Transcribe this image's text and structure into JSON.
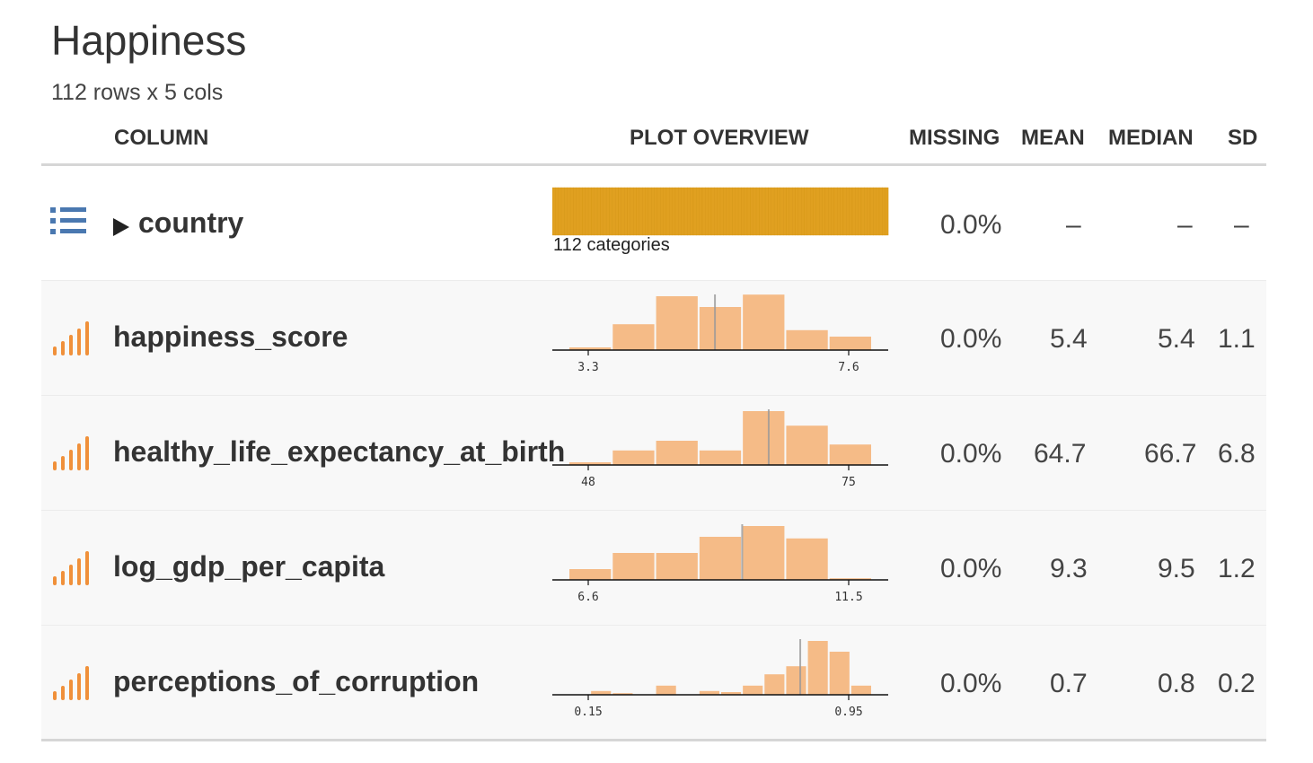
{
  "title": "Happiness",
  "subtitle": "112 rows x 5 cols",
  "headers": {
    "column": "COLUMN",
    "plot_overview": "PLOT OVERVIEW",
    "missing": "MISSING",
    "mean": "MEAN",
    "median": "MEDIAN",
    "sd": "SD"
  },
  "colors": {
    "categorical_bar": "#e0a020",
    "histogram_bar": "#f5bb87",
    "numeric_icon": "#f0903a",
    "categorical_icon": "#4a78b0"
  },
  "rows": [
    {
      "name": "country",
      "type_icon": "list-icon",
      "categories_label": "112 categories",
      "category_count": 112,
      "missing": "0.0%",
      "mean": "–",
      "median": "–",
      "sd": "–"
    },
    {
      "name": "happiness_score",
      "type_icon": "bar-signal-icon",
      "missing": "0.0%",
      "mean": "5.4",
      "median": "5.4",
      "sd": "1.1",
      "tick_min": "3.3",
      "tick_max": "7.6",
      "axis_min": 3.3,
      "axis_max": 7.6,
      "histogram": [
        0.05,
        0.48,
        1.0,
        0.8,
        1.03,
        0.37,
        0.25
      ],
      "median_marker": 5.4
    },
    {
      "name": "healthy_life_expectancy_at_birth",
      "type_icon": "bar-signal-icon",
      "missing": "0.0%",
      "mean": "64.7",
      "median": "66.7",
      "sd": "6.8",
      "tick_min": "48",
      "tick_max": "75",
      "axis_min": 48,
      "axis_max": 75,
      "histogram": [
        0.05,
        0.27,
        0.45,
        0.27,
        1.0,
        0.73,
        0.38
      ],
      "median_marker": 66.7
    },
    {
      "name": "log_gdp_per_capita",
      "type_icon": "bar-signal-icon",
      "missing": "0.0%",
      "mean": "9.3",
      "median": "9.5",
      "sd": "1.2",
      "tick_min": "6.6",
      "tick_max": "11.5",
      "axis_min": 6.6,
      "axis_max": 11.5,
      "histogram": [
        0.2,
        0.5,
        0.5,
        0.8,
        1.0,
        0.77,
        0.03
      ],
      "median_marker": 9.5
    },
    {
      "name": "perceptions_of_corruption",
      "type_icon": "bar-signal-icon",
      "missing": "0.0%",
      "mean": "0.7",
      "median": "0.8",
      "sd": "0.2",
      "tick_min": "0.15",
      "tick_max": "0.95",
      "axis_min": 0.15,
      "axis_max": 0.95,
      "histogram": [
        0.0,
        0.07,
        0.03,
        0.0,
        0.17,
        0.0,
        0.07,
        0.05,
        0.17,
        0.38,
        0.53,
        1.0,
        0.8,
        0.17
      ],
      "median_marker": 0.8
    }
  ]
}
